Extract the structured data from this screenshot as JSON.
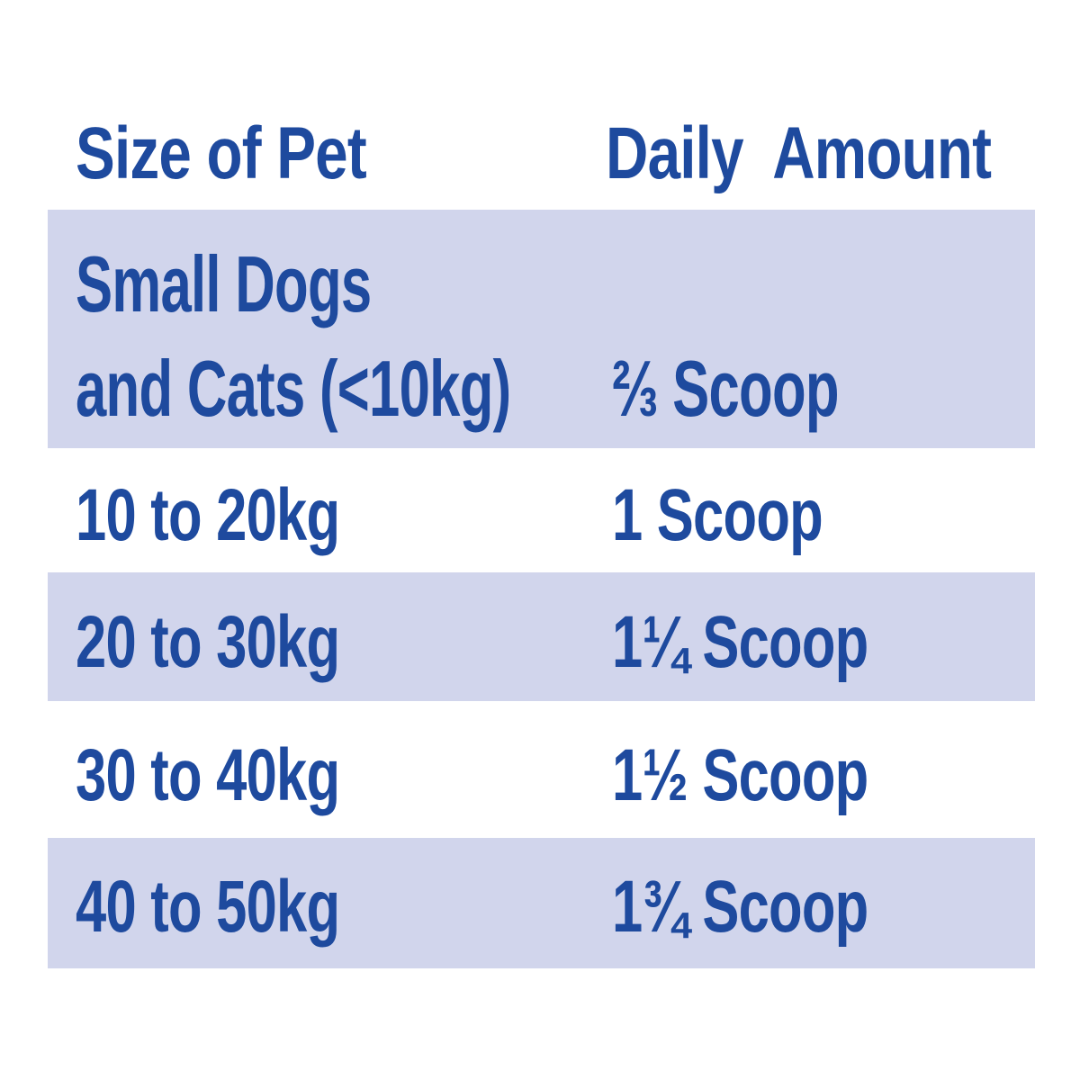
{
  "colors": {
    "text_blue": "#1e4a9e",
    "row_shade_lavender": "#d1d5ec",
    "background": "#ffffff"
  },
  "table": {
    "headers": {
      "size_label": "Size of Pet",
      "amount_label": "Daily  Amount"
    },
    "rows": [
      {
        "size": "Small Dogs and Cats (<10kg)",
        "size_line1": "Small Dogs",
        "size_line2": "and Cats (<10kg)",
        "amount": "⅔ Scoop",
        "shaded": true
      },
      {
        "size": "10 to 20kg",
        "amount": "1 Scoop",
        "shaded": false
      },
      {
        "size": "20 to 30kg",
        "amount": "1¼ Scoop",
        "shaded": true
      },
      {
        "size": "30 to 40kg",
        "amount": "1½ Scoop",
        "shaded": false
      },
      {
        "size": "40 to 50kg",
        "amount": "1¾ Scoop",
        "shaded": true
      }
    ]
  },
  "chart_data": {
    "type": "table",
    "title": "",
    "columns": [
      "Size of Pet",
      "Daily Amount"
    ],
    "rows": [
      [
        "Small Dogs and Cats (<10kg)",
        "⅔ Scoop"
      ],
      [
        "10 to 20kg",
        "1 Scoop"
      ],
      [
        "20 to 30kg",
        "1¼ Scoop"
      ],
      [
        "30 to 40kg",
        "1½ Scoop"
      ],
      [
        "40 to 50kg",
        "1¾ Scoop"
      ]
    ],
    "amount_scoops_numeric": [
      0.67,
      1,
      1.25,
      1.5,
      1.75
    ],
    "layout_hints": {
      "striped_row_indices": [
        0,
        2,
        4
      ],
      "stripe_color": "#d1d5ec",
      "text_color": "#1e4a9e",
      "grid": false,
      "legend": false
    }
  }
}
